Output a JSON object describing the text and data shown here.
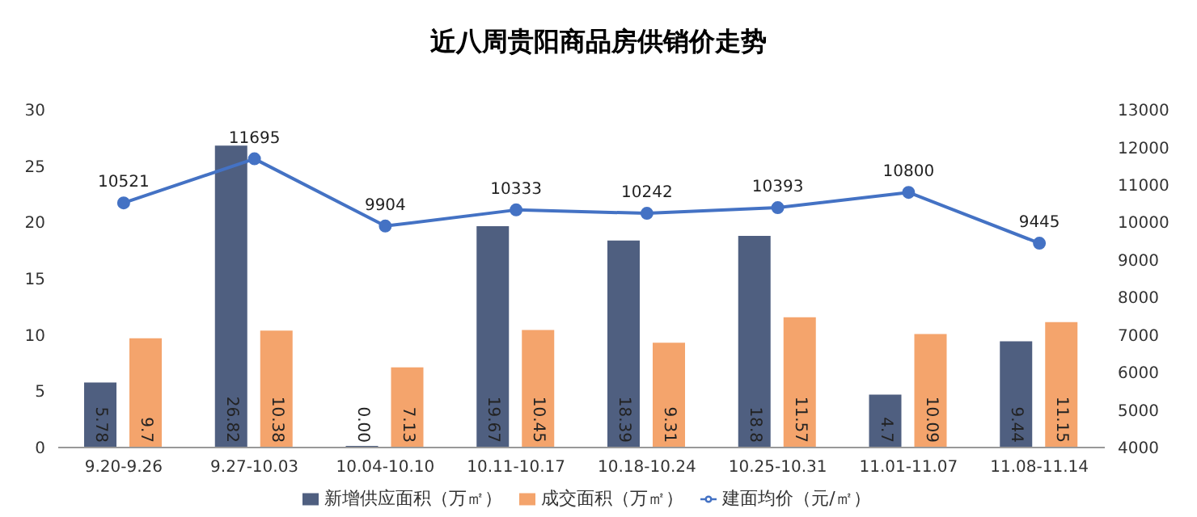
{
  "chart_data": {
    "type": "bar",
    "title": "近八周贵阳商品房供销价走势",
    "categories": [
      "9.20-9.26",
      "9.27-10.03",
      "10.04-10.10",
      "10.11-10.17",
      "10.18-10.24",
      "10.25-10.31",
      "11.01-11.07",
      "11.08-11.14"
    ],
    "series": [
      {
        "name": "新增供应面积（万㎡）",
        "color": "#4f5f80",
        "values": [
          5.78,
          26.82,
          0,
          19.67,
          18.39,
          18.8,
          4.7,
          9.44
        ],
        "value_labels": [
          "5.78",
          "26.82",
          "0.00",
          "19.67",
          "18.39",
          "18.8",
          "4.7",
          "9.44"
        ]
      },
      {
        "name": "成交面积（万㎡）",
        "color": "#f4a46c",
        "values": [
          9.7,
          10.38,
          7.13,
          10.45,
          9.31,
          11.57,
          10.09,
          11.15
        ],
        "value_labels": [
          "9.7",
          "10.38",
          "7.13",
          "10.45",
          "9.31",
          "11.57",
          "10.09",
          "11.15"
        ]
      },
      {
        "name": "建面均价（元/㎡）",
        "type": "line",
        "axis": "y2",
        "color": "#4472c4",
        "values": [
          10521,
          11695,
          9904,
          10333,
          10242,
          10393,
          10800,
          9445
        ],
        "value_labels": [
          "10521",
          "11695",
          "9904",
          "10333",
          "10242",
          "10393",
          "10800",
          "9445"
        ]
      }
    ],
    "ylim": [
      0,
      30
    ],
    "yticks": [
      0,
      5,
      10,
      15,
      20,
      25,
      30
    ],
    "y2lim": [
      4000,
      13000
    ],
    "y2ticks": [
      4000,
      5000,
      6000,
      7000,
      8000,
      9000,
      10000,
      11000,
      12000,
      13000
    ],
    "marker": "circle",
    "legend": "bottom",
    "grid": false
  }
}
